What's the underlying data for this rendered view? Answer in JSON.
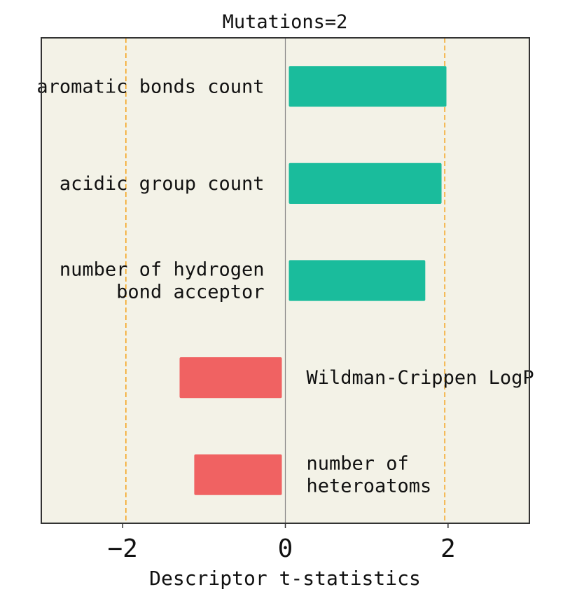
{
  "chart_data": {
    "type": "bar",
    "orientation": "horizontal",
    "title": "Mutations=2",
    "xlabel": "Descriptor t-statistics",
    "ylabel": "",
    "xlim": [
      -3,
      3
    ],
    "xticks": [
      -2,
      0,
      2
    ],
    "tick_labels": [
      "−2",
      "0",
      "2"
    ],
    "reference_lines": [
      -1.96,
      1.96
    ],
    "zero_line": 0,
    "categories": [
      [
        "aromatic bonds count"
      ],
      [
        "acidic group count"
      ],
      [
        "number of hydrogen",
        "bond acceptor"
      ],
      [
        "Wildman-Crippen LogP"
      ],
      [
        "number of",
        "heteroatoms"
      ]
    ],
    "values": [
      1.98,
      1.92,
      1.72,
      -1.3,
      -1.12
    ],
    "colors": {
      "positive": "#1abc9c",
      "negative": "#f06262",
      "reference_line": "#f5a623",
      "zero_line": "#888888",
      "plot_background": "#f3f2e7",
      "frame": "#333333"
    },
    "grid": false,
    "legend": "none"
  }
}
